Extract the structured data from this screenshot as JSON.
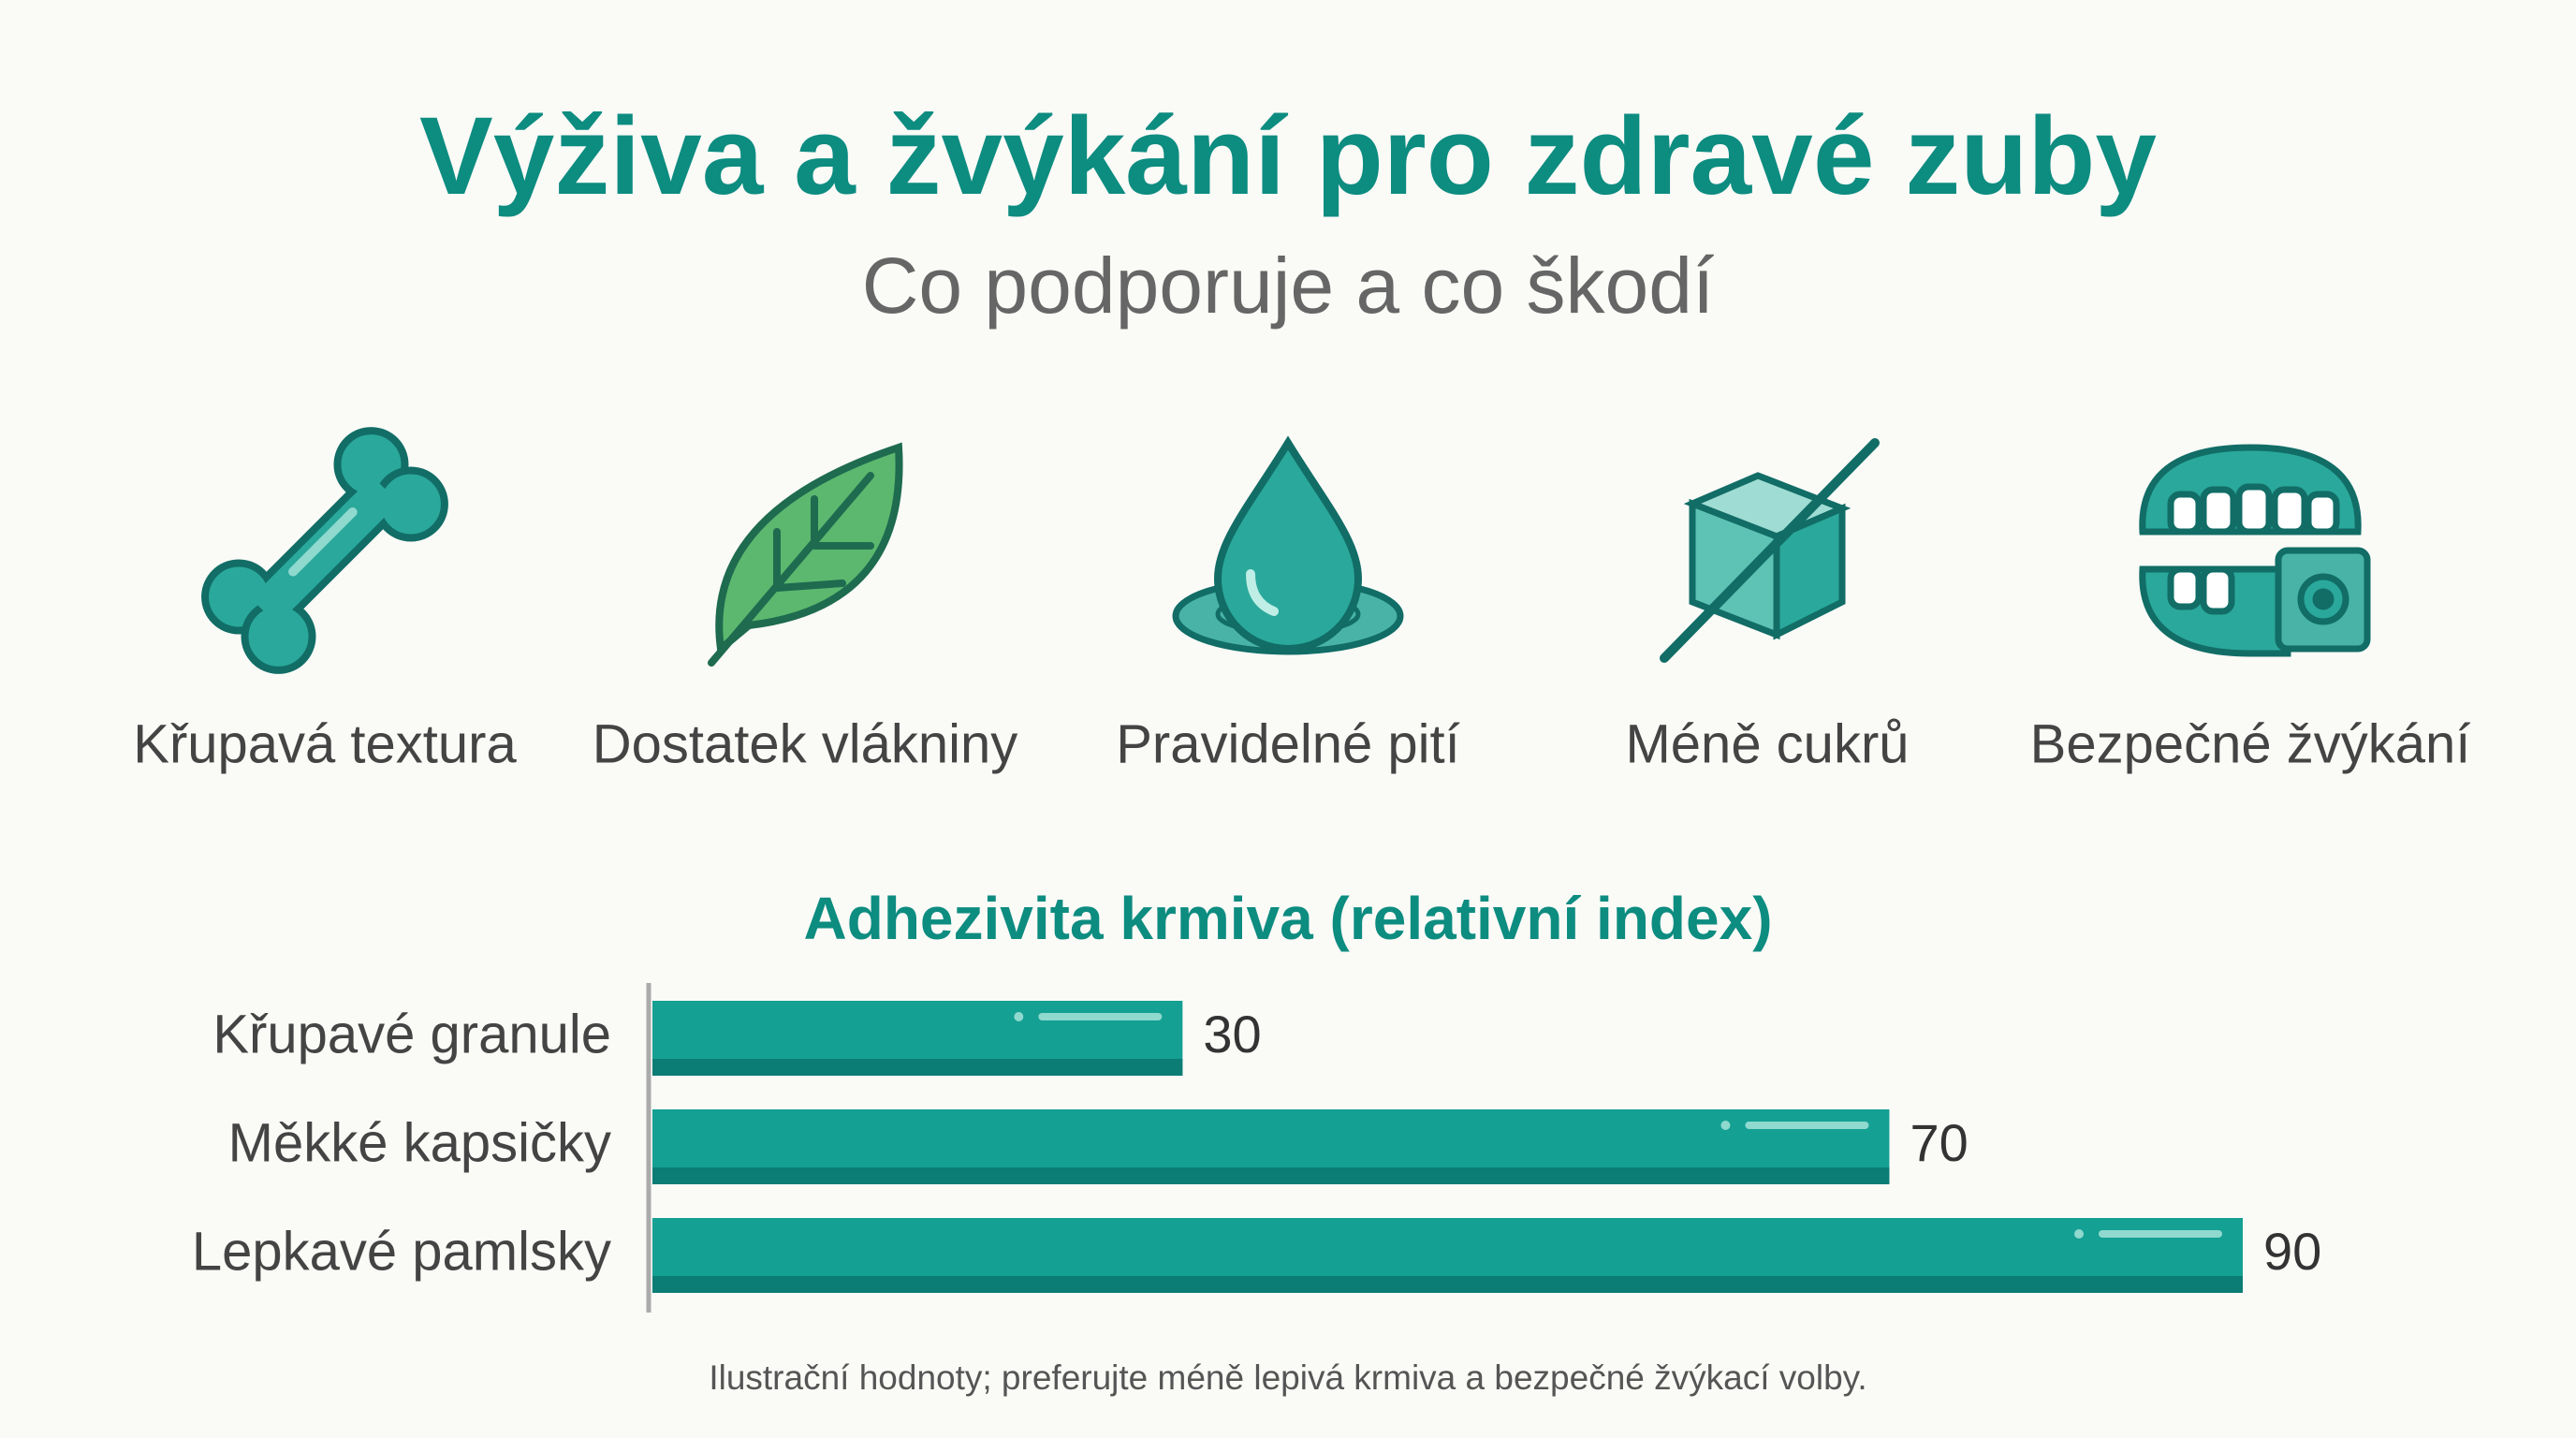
{
  "header": {
    "title": "Výživa a žvýkání pro zdravé zuby",
    "subtitle": "Co podporuje a co škodí"
  },
  "icons": [
    {
      "label": "Křupavá textura"
    },
    {
      "label": "Dostatek vlákniny"
    },
    {
      "label": "Pravidelné pití"
    },
    {
      "label": "Méně cukrů"
    },
    {
      "label": "Bezpečné žvýkání"
    }
  ],
  "chart_data": {
    "type": "bar",
    "orientation": "horizontal",
    "title": "Adhezivita krmiva (relativní index)",
    "categories": [
      "Křupavé granule",
      "Měkké kapsičky",
      "Lepkavé pamlsky"
    ],
    "values": [
      30,
      70,
      90
    ],
    "color": "#14a093"
  },
  "footnote": "Ilustrační hodnoty; preferujte méně lepivá krmiva a bezpečné žvýkací volby."
}
